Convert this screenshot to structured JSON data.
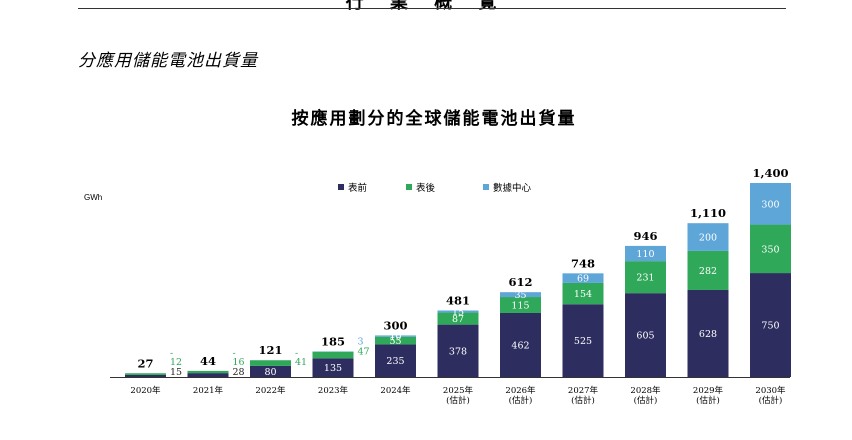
{
  "header": {
    "title": "行 業 概 覽"
  },
  "section_title": "分應用儲能電池出貨量",
  "colors": {
    "front": "#2d2e5f",
    "back": "#2fa85a",
    "dc": "#5ea5d8"
  },
  "chart_data": {
    "type": "bar",
    "stacked": true,
    "title": "按應用劃分的全球儲能電池出貨量",
    "ylabel": "GWh",
    "ylim": [
      0,
      1400
    ],
    "grid": false,
    "legend_position": "top",
    "categories": [
      "2020年",
      "2021年",
      "2022年",
      "2023年",
      "2024年",
      "2025年\n(估計)",
      "2026年\n(估計)",
      "2027年\n(估計)",
      "2028年\n(估計)",
      "2029年\n(估計)",
      "2030年\n(估計)"
    ],
    "series": [
      {
        "name": "表前",
        "values": [
          15,
          28,
          80,
          135,
          235,
          378,
          462,
          525,
          605,
          628,
          750
        ],
        "labels": [
          "15",
          "28",
          "80",
          "135",
          "235",
          "378",
          "462",
          "525",
          "605",
          "628",
          "750"
        ]
      },
      {
        "name": "表後",
        "values": [
          12,
          16,
          41,
          47,
          55,
          87,
          115,
          154,
          231,
          282,
          350
        ],
        "labels": [
          "12",
          "16",
          "41",
          "47",
          "55",
          "87",
          "115",
          "154",
          "231",
          "282",
          "350"
        ]
      },
      {
        "name": "數據中心",
        "values": [
          0,
          0,
          0,
          3,
          10,
          15,
          35,
          69,
          110,
          200,
          300
        ],
        "labels": [
          "-",
          "-",
          "-",
          "3",
          "10",
          "15",
          "35",
          "69",
          "110",
          "200",
          "300"
        ]
      }
    ],
    "totals": [
      "27",
      "44",
      "121",
      "185",
      "300",
      "481",
      "612",
      "748",
      "946",
      "1,110",
      "1,400"
    ]
  }
}
